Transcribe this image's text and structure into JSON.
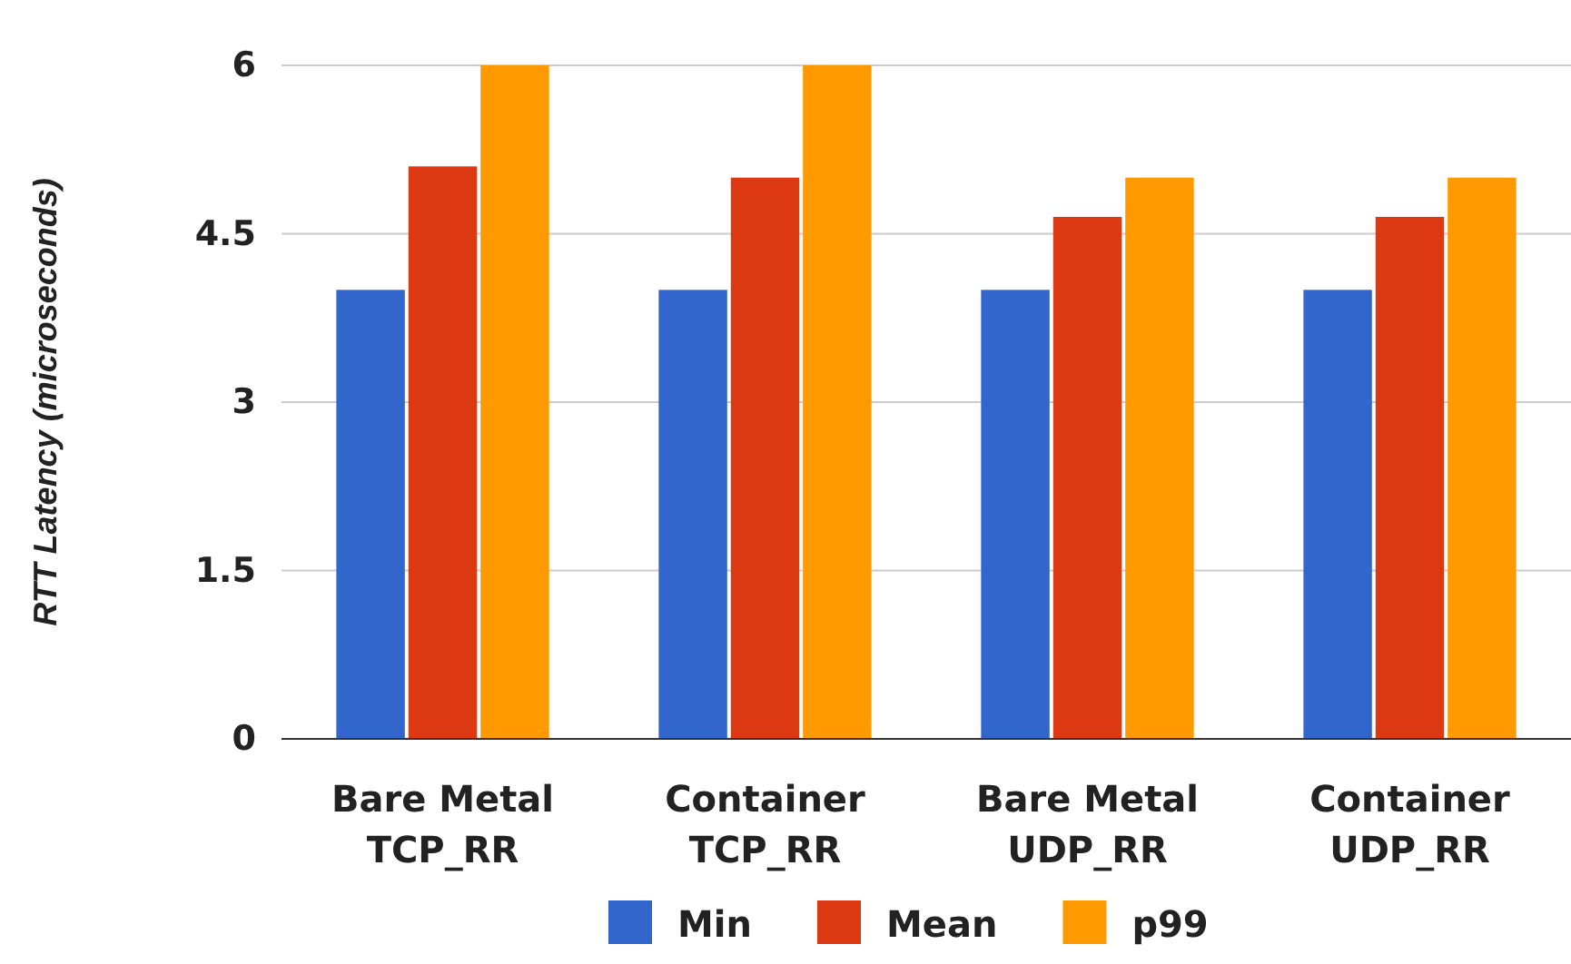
{
  "chart_data": {
    "type": "bar",
    "ylabel": "RTT Latency (microseconds)",
    "categories": [
      "Bare Metal\nTCP_RR",
      "Container\nTCP_RR",
      "Bare Metal\nUDP_RR",
      "Container\nUDP_RR"
    ],
    "series": [
      {
        "name": "Min",
        "color": "#3366cc",
        "values": [
          4,
          4,
          4,
          4
        ]
      },
      {
        "name": "Mean",
        "color": "#dc3912",
        "values": [
          5.1,
          5.0,
          4.65,
          4.65
        ]
      },
      {
        "name": "p99",
        "color": "#ff9900",
        "values": [
          6,
          6,
          5,
          5
        ]
      }
    ],
    "ylim": [
      0,
      6
    ],
    "yticks": [
      0,
      1.5,
      3,
      4.5,
      6
    ],
    "grid": "y",
    "legend": "bottom"
  }
}
